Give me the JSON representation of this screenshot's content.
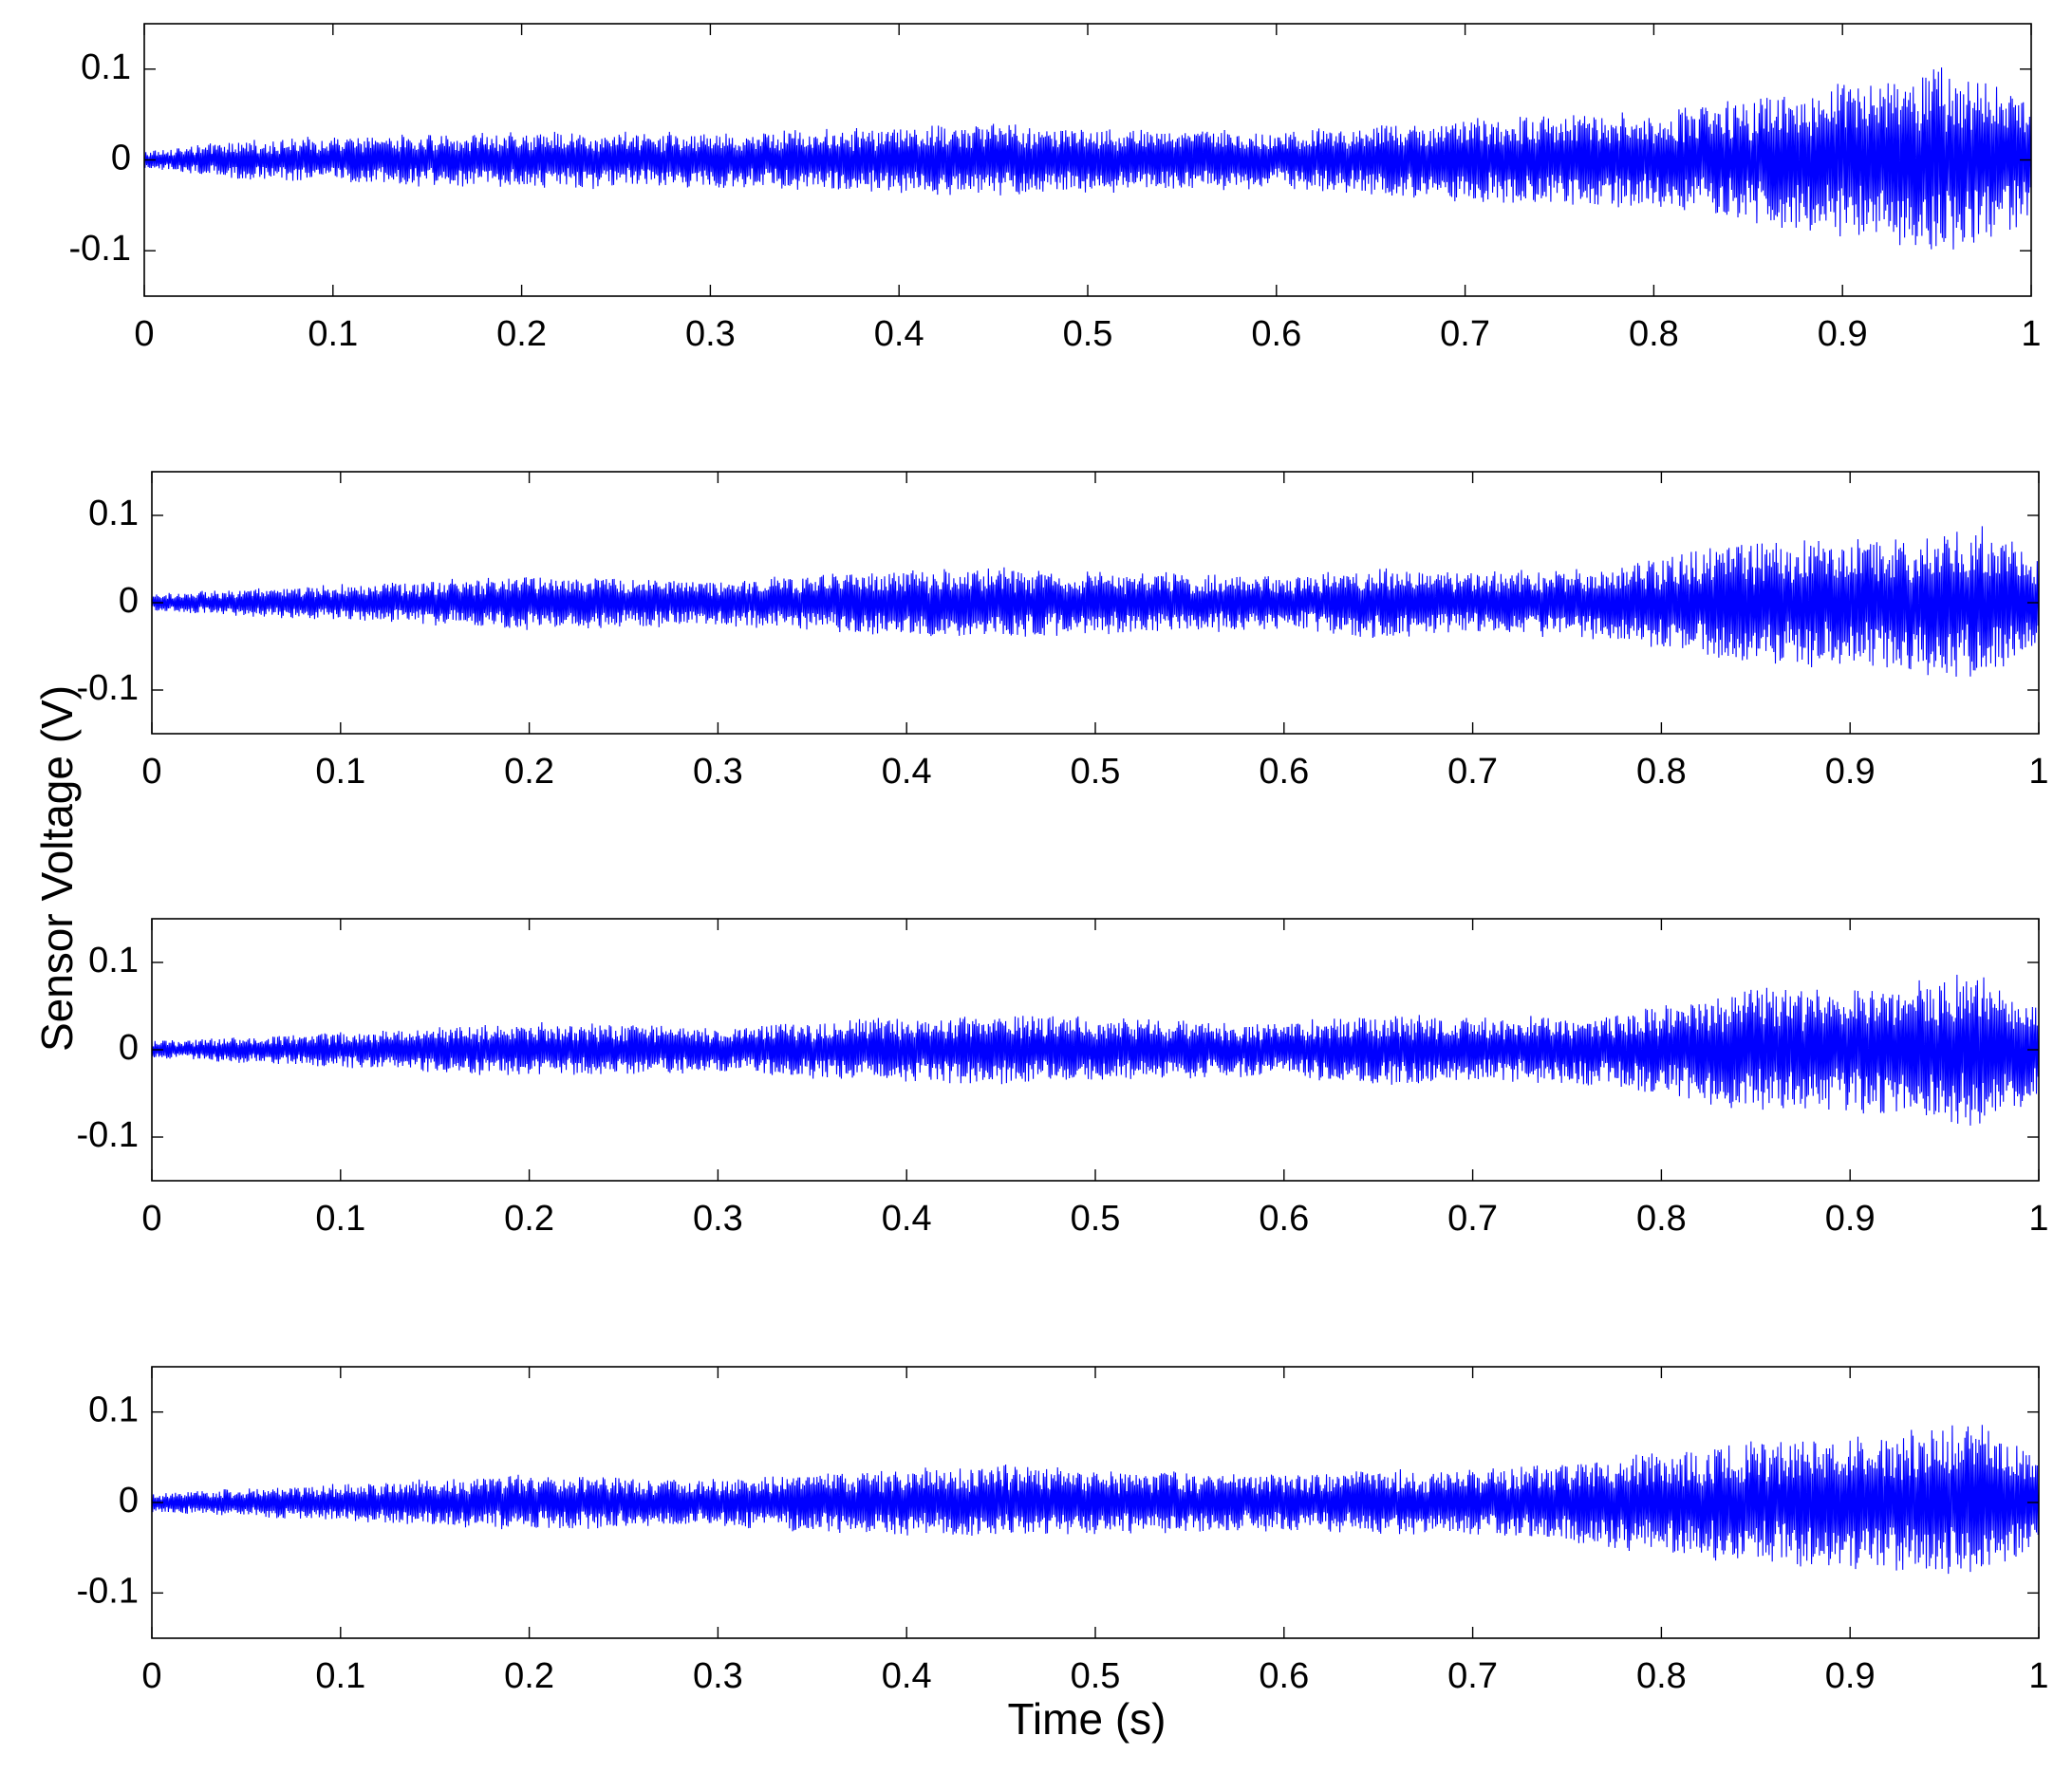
{
  "figure": {
    "ylabel": "Sensor Voltage (V)",
    "xlabel": "Time (s)"
  },
  "chart_data": [
    {
      "type": "line",
      "x_range": [
        0,
        1
      ],
      "ylim": [
        -0.15,
        0.15
      ],
      "xticks": [
        0,
        0.1,
        0.2,
        0.3,
        0.4,
        0.5,
        0.6,
        0.7,
        0.8,
        0.9,
        1
      ],
      "xtick_labels": [
        "0",
        "0.1",
        "0.2",
        "0.3",
        "0.4",
        "0.5",
        "0.6",
        "0.7",
        "0.8",
        "0.9",
        "1"
      ],
      "yticks": [
        -0.1,
        0,
        0.1
      ],
      "ytick_labels": [
        "-0.1",
        "0",
        "0.1"
      ],
      "grid": false,
      "color": "#0000ff",
      "envelope": {
        "t": [
          0,
          0.05,
          0.1,
          0.2,
          0.3,
          0.4,
          0.45,
          0.5,
          0.6,
          0.7,
          0.75,
          0.8,
          0.85,
          0.9,
          0.95,
          1.0
        ],
        "amplitude": [
          0.01,
          0.02,
          0.025,
          0.03,
          0.03,
          0.035,
          0.04,
          0.035,
          0.03,
          0.045,
          0.05,
          0.05,
          0.07,
          0.08,
          0.1,
          0.07
        ]
      },
      "peak_min": -0.105,
      "peak_max": 0.105
    },
    {
      "type": "line",
      "x_range": [
        0,
        1
      ],
      "ylim": [
        -0.15,
        0.15
      ],
      "xticks": [
        0,
        0.1,
        0.2,
        0.3,
        0.4,
        0.5,
        0.6,
        0.7,
        0.8,
        0.9,
        1
      ],
      "xtick_labels": [
        "0",
        "0.1",
        "0.2",
        "0.3",
        "0.4",
        "0.5",
        "0.6",
        "0.7",
        "0.8",
        "0.9",
        "1"
      ],
      "yticks": [
        -0.1,
        0,
        0.1
      ],
      "ytick_labels": [
        "-0.1",
        "0",
        "0.1"
      ],
      "grid": false,
      "color": "#0000ff",
      "envelope": {
        "t": [
          0,
          0.05,
          0.1,
          0.2,
          0.3,
          0.38,
          0.45,
          0.5,
          0.6,
          0.65,
          0.7,
          0.77,
          0.8,
          0.85,
          0.9,
          0.97,
          1.0
        ],
        "amplitude": [
          0.01,
          0.015,
          0.02,
          0.03,
          0.025,
          0.035,
          0.04,
          0.035,
          0.03,
          0.04,
          0.035,
          0.04,
          0.05,
          0.07,
          0.07,
          0.085,
          0.05
        ]
      },
      "peak_min": -0.09,
      "peak_max": 0.085
    },
    {
      "type": "line",
      "x_range": [
        0,
        1
      ],
      "ylim": [
        -0.15,
        0.15
      ],
      "xticks": [
        0,
        0.1,
        0.2,
        0.3,
        0.4,
        0.5,
        0.6,
        0.7,
        0.8,
        0.9,
        1
      ],
      "xtick_labels": [
        "0",
        "0.1",
        "0.2",
        "0.3",
        "0.4",
        "0.5",
        "0.6",
        "0.7",
        "0.8",
        "0.9",
        "1"
      ],
      "yticks": [
        -0.1,
        0,
        0.1
      ],
      "ytick_labels": [
        "-0.1",
        "0",
        "0.1"
      ],
      "grid": false,
      "color": "#0000ff",
      "envelope": {
        "t": [
          0,
          0.05,
          0.1,
          0.2,
          0.3,
          0.38,
          0.45,
          0.5,
          0.6,
          0.65,
          0.7,
          0.77,
          0.8,
          0.85,
          0.9,
          0.97,
          1.0
        ],
        "amplitude": [
          0.01,
          0.015,
          0.02,
          0.03,
          0.025,
          0.035,
          0.04,
          0.035,
          0.03,
          0.04,
          0.035,
          0.04,
          0.05,
          0.07,
          0.07,
          0.085,
          0.05
        ]
      },
      "peak_min": -0.09,
      "peak_max": 0.085
    },
    {
      "type": "line",
      "x_range": [
        0,
        1
      ],
      "ylim": [
        -0.15,
        0.15
      ],
      "xticks": [
        0,
        0.1,
        0.2,
        0.3,
        0.4,
        0.5,
        0.6,
        0.7,
        0.8,
        0.9,
        1
      ],
      "xtick_labels": [
        "0",
        "0.1",
        "0.2",
        "0.3",
        "0.4",
        "0.5",
        "0.6",
        "0.7",
        "0.8",
        "0.9",
        "1"
      ],
      "yticks": [
        -0.1,
        0,
        0.1
      ],
      "ytick_labels": [
        "-0.1",
        "0",
        "0.1"
      ],
      "grid": false,
      "color": "#0000ff",
      "envelope": {
        "t": [
          0,
          0.05,
          0.1,
          0.2,
          0.3,
          0.38,
          0.45,
          0.5,
          0.6,
          0.65,
          0.7,
          0.78,
          0.85,
          0.9,
          0.97,
          1.0
        ],
        "amplitude": [
          0.01,
          0.015,
          0.02,
          0.03,
          0.025,
          0.035,
          0.04,
          0.035,
          0.03,
          0.035,
          0.035,
          0.05,
          0.065,
          0.07,
          0.085,
          0.05
        ]
      },
      "peak_min": -0.09,
      "peak_max": 0.09
    }
  ]
}
